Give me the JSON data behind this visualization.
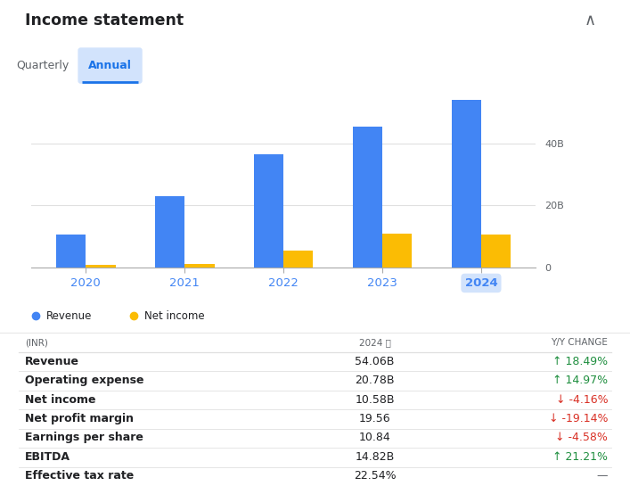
{
  "title": "Income statement",
  "tab_quarterly": "Quarterly",
  "tab_annual": "Annual",
  "years": [
    "2020",
    "2021",
    "2022",
    "2023",
    "2024"
  ],
  "revenue": [
    10.5,
    23.0,
    36.5,
    45.5,
    54.06
  ],
  "net_income": [
    0.8,
    1.0,
    5.5,
    11.0,
    10.58
  ],
  "bar_color_revenue": "#4285F4",
  "bar_color_net_income": "#FBBC04",
  "legend_revenue": "Revenue",
  "legend_net_income": "Net income",
  "highlight_year": "2024",
  "highlight_bg": "#D2E3FC",
  "table_header_col1": "(INR)",
  "table_header_col2": "2024 ⓘ",
  "table_header_col3": "Y/Y CHANGE",
  "table_rows": [
    [
      "Revenue",
      "54.06B",
      "↑ 18.49%",
      "green"
    ],
    [
      "Operating expense",
      "20.78B",
      "↑ 14.97%",
      "green"
    ],
    [
      "Net income",
      "10.58B",
      "↓ -4.16%",
      "red"
    ],
    [
      "Net profit margin",
      "19.56",
      "↓ -19.14%",
      "red"
    ],
    [
      "Earnings per share",
      "10.84",
      "↓ -4.58%",
      "red"
    ],
    [
      "EBITDA",
      "14.82B",
      "↑ 21.21%",
      "green"
    ],
    [
      "Effective tax rate",
      "22.54%",
      "—",
      "gray"
    ]
  ],
  "bg_color": "#FFFFFF",
  "header_color": "#202124",
  "row_text_color": "#202124",
  "header_text_color": "#5f6368",
  "divider_color": "#E0E0E0",
  "axis_label_color": "#4285F4",
  "collapse_icon_color": "#5f6368",
  "annual_tab_color": "#1a73e8",
  "color_map": {
    "green": "#1e8e3e",
    "red": "#d93025",
    "gray": "#5f6368"
  }
}
